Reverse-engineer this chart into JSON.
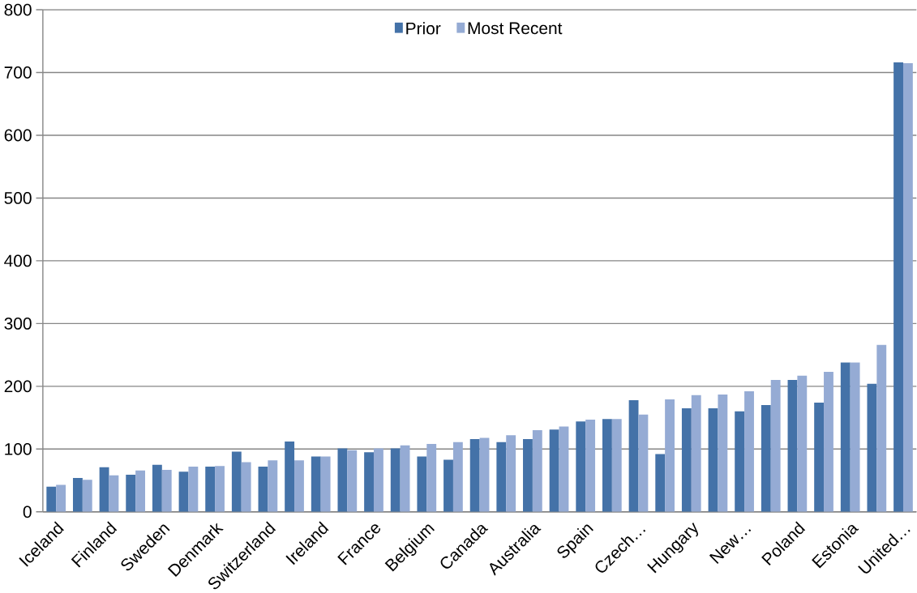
{
  "chart_data": {
    "type": "bar",
    "categories": [
      "Iceland",
      null,
      "Finland",
      null,
      "Sweden",
      null,
      "Denmark",
      null,
      "Switzerland",
      null,
      "Ireland",
      null,
      "France",
      null,
      "Belgium",
      null,
      "Canada",
      null,
      "Australia",
      null,
      "Spain",
      null,
      "Czech…",
      null,
      "Hungary",
      null,
      "New…",
      null,
      "Poland",
      null,
      "Estonia",
      null,
      "United…"
    ],
    "series": [
      {
        "name": "Prior",
        "color": "#4472a8",
        "values": [
          40,
          54,
          71,
          59,
          75,
          64,
          72,
          96,
          72,
          112,
          88,
          101,
          95,
          101,
          88,
          83,
          116,
          111,
          116,
          131,
          144,
          148,
          178,
          92,
          165,
          165,
          160,
          170,
          210,
          174,
          238,
          204,
          716
        ]
      },
      {
        "name": "Most Recent",
        "color": "#95abd4",
        "values": [
          43,
          51,
          58,
          66,
          67,
          72,
          73,
          79,
          82,
          82,
          88,
          98,
          101,
          106,
          108,
          111,
          118,
          122,
          130,
          136,
          147,
          148,
          155,
          179,
          186,
          187,
          192,
          210,
          217,
          223,
          238,
          266,
          715
        ]
      }
    ],
    "ylim": [
      0,
      800
    ],
    "yticks": [
      0,
      100,
      200,
      300,
      400,
      500,
      600,
      700,
      800
    ],
    "grid": "y",
    "legend": "top"
  }
}
